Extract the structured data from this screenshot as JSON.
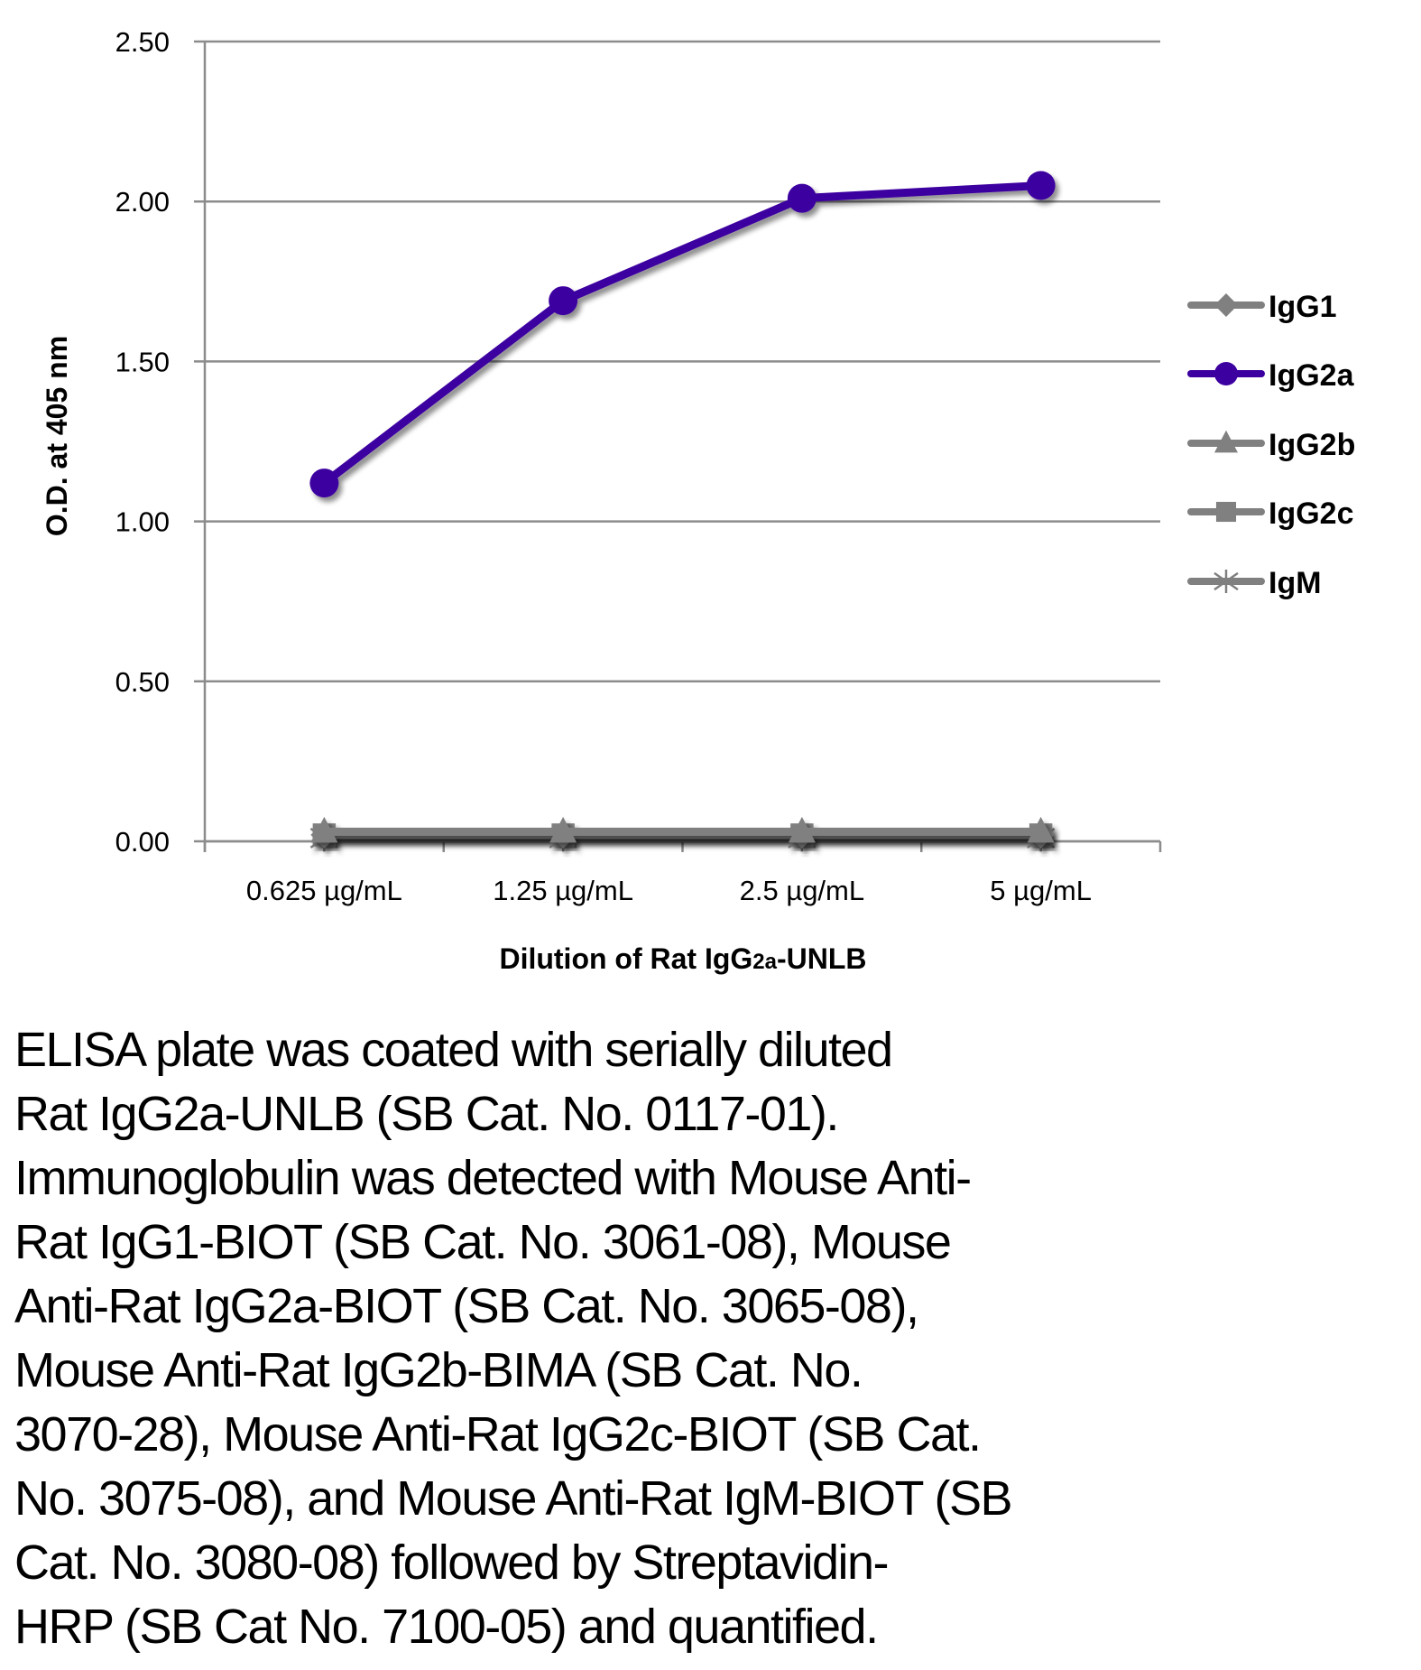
{
  "chart_data": {
    "type": "line",
    "title": "",
    "xlabel": "Dilution of Rat IgG2a-UNLB",
    "xlabel_parts": {
      "prefix": "Dilution of Rat IgG",
      "subscript": "2a",
      "suffix": "-UNLB"
    },
    "ylabel": "O.D. at 405 nm",
    "ylim": [
      0,
      2.5
    ],
    "yticks": [
      "0.00",
      "0.50",
      "1.00",
      "1.50",
      "2.00",
      "2.50"
    ],
    "ytick_values": [
      0,
      0.5,
      1.0,
      1.5,
      2.0,
      2.5
    ],
    "grid": true,
    "legend_position": "right",
    "categories": [
      "0.625 µg/mL",
      "1.25 µg/mL",
      "2.5 µg/mL",
      "5 µg/mL"
    ],
    "series": [
      {
        "name": "IgG1",
        "marker": "diamond",
        "color": "#808080",
        "values": [
          0.02,
          0.02,
          0.02,
          0.02
        ]
      },
      {
        "name": "IgG2a",
        "marker": "circle",
        "color": "#3D00A0",
        "values": [
          1.12,
          1.69,
          2.01,
          2.05
        ]
      },
      {
        "name": "IgG2b",
        "marker": "triangle",
        "color": "#808080",
        "values": [
          0.03,
          0.03,
          0.03,
          0.03
        ]
      },
      {
        "name": "IgG2c",
        "marker": "square",
        "color": "#808080",
        "values": [
          0.02,
          0.02,
          0.02,
          0.02
        ]
      },
      {
        "name": "IgM",
        "marker": "asterisk",
        "color": "#808080",
        "values": [
          0.01,
          0.01,
          0.01,
          0.01
        ]
      }
    ]
  },
  "caption": {
    "lines": [
      "ELISA plate was coated with serially diluted",
      "Rat IgG2a-UNLB (SB Cat. No. 0117-01).",
      "Immunoglobulin was detected with Mouse Anti-",
      "Rat IgG1-BIOT (SB Cat. No. 3061-08), Mouse",
      "Anti-Rat IgG2a-BIOT (SB Cat. No. 3065-08),",
      "Mouse Anti-Rat IgG2b-BIMA (SB Cat. No.",
      "3070-28), Mouse Anti-Rat IgG2c-BIOT (SB Cat.",
      "No. 3075-08), and Mouse Anti-Rat IgM-BIOT (SB",
      "Cat. No. 3080-08) followed by Streptavidin-",
      "HRP (SB Cat No. 7100-05) and quantified."
    ]
  }
}
